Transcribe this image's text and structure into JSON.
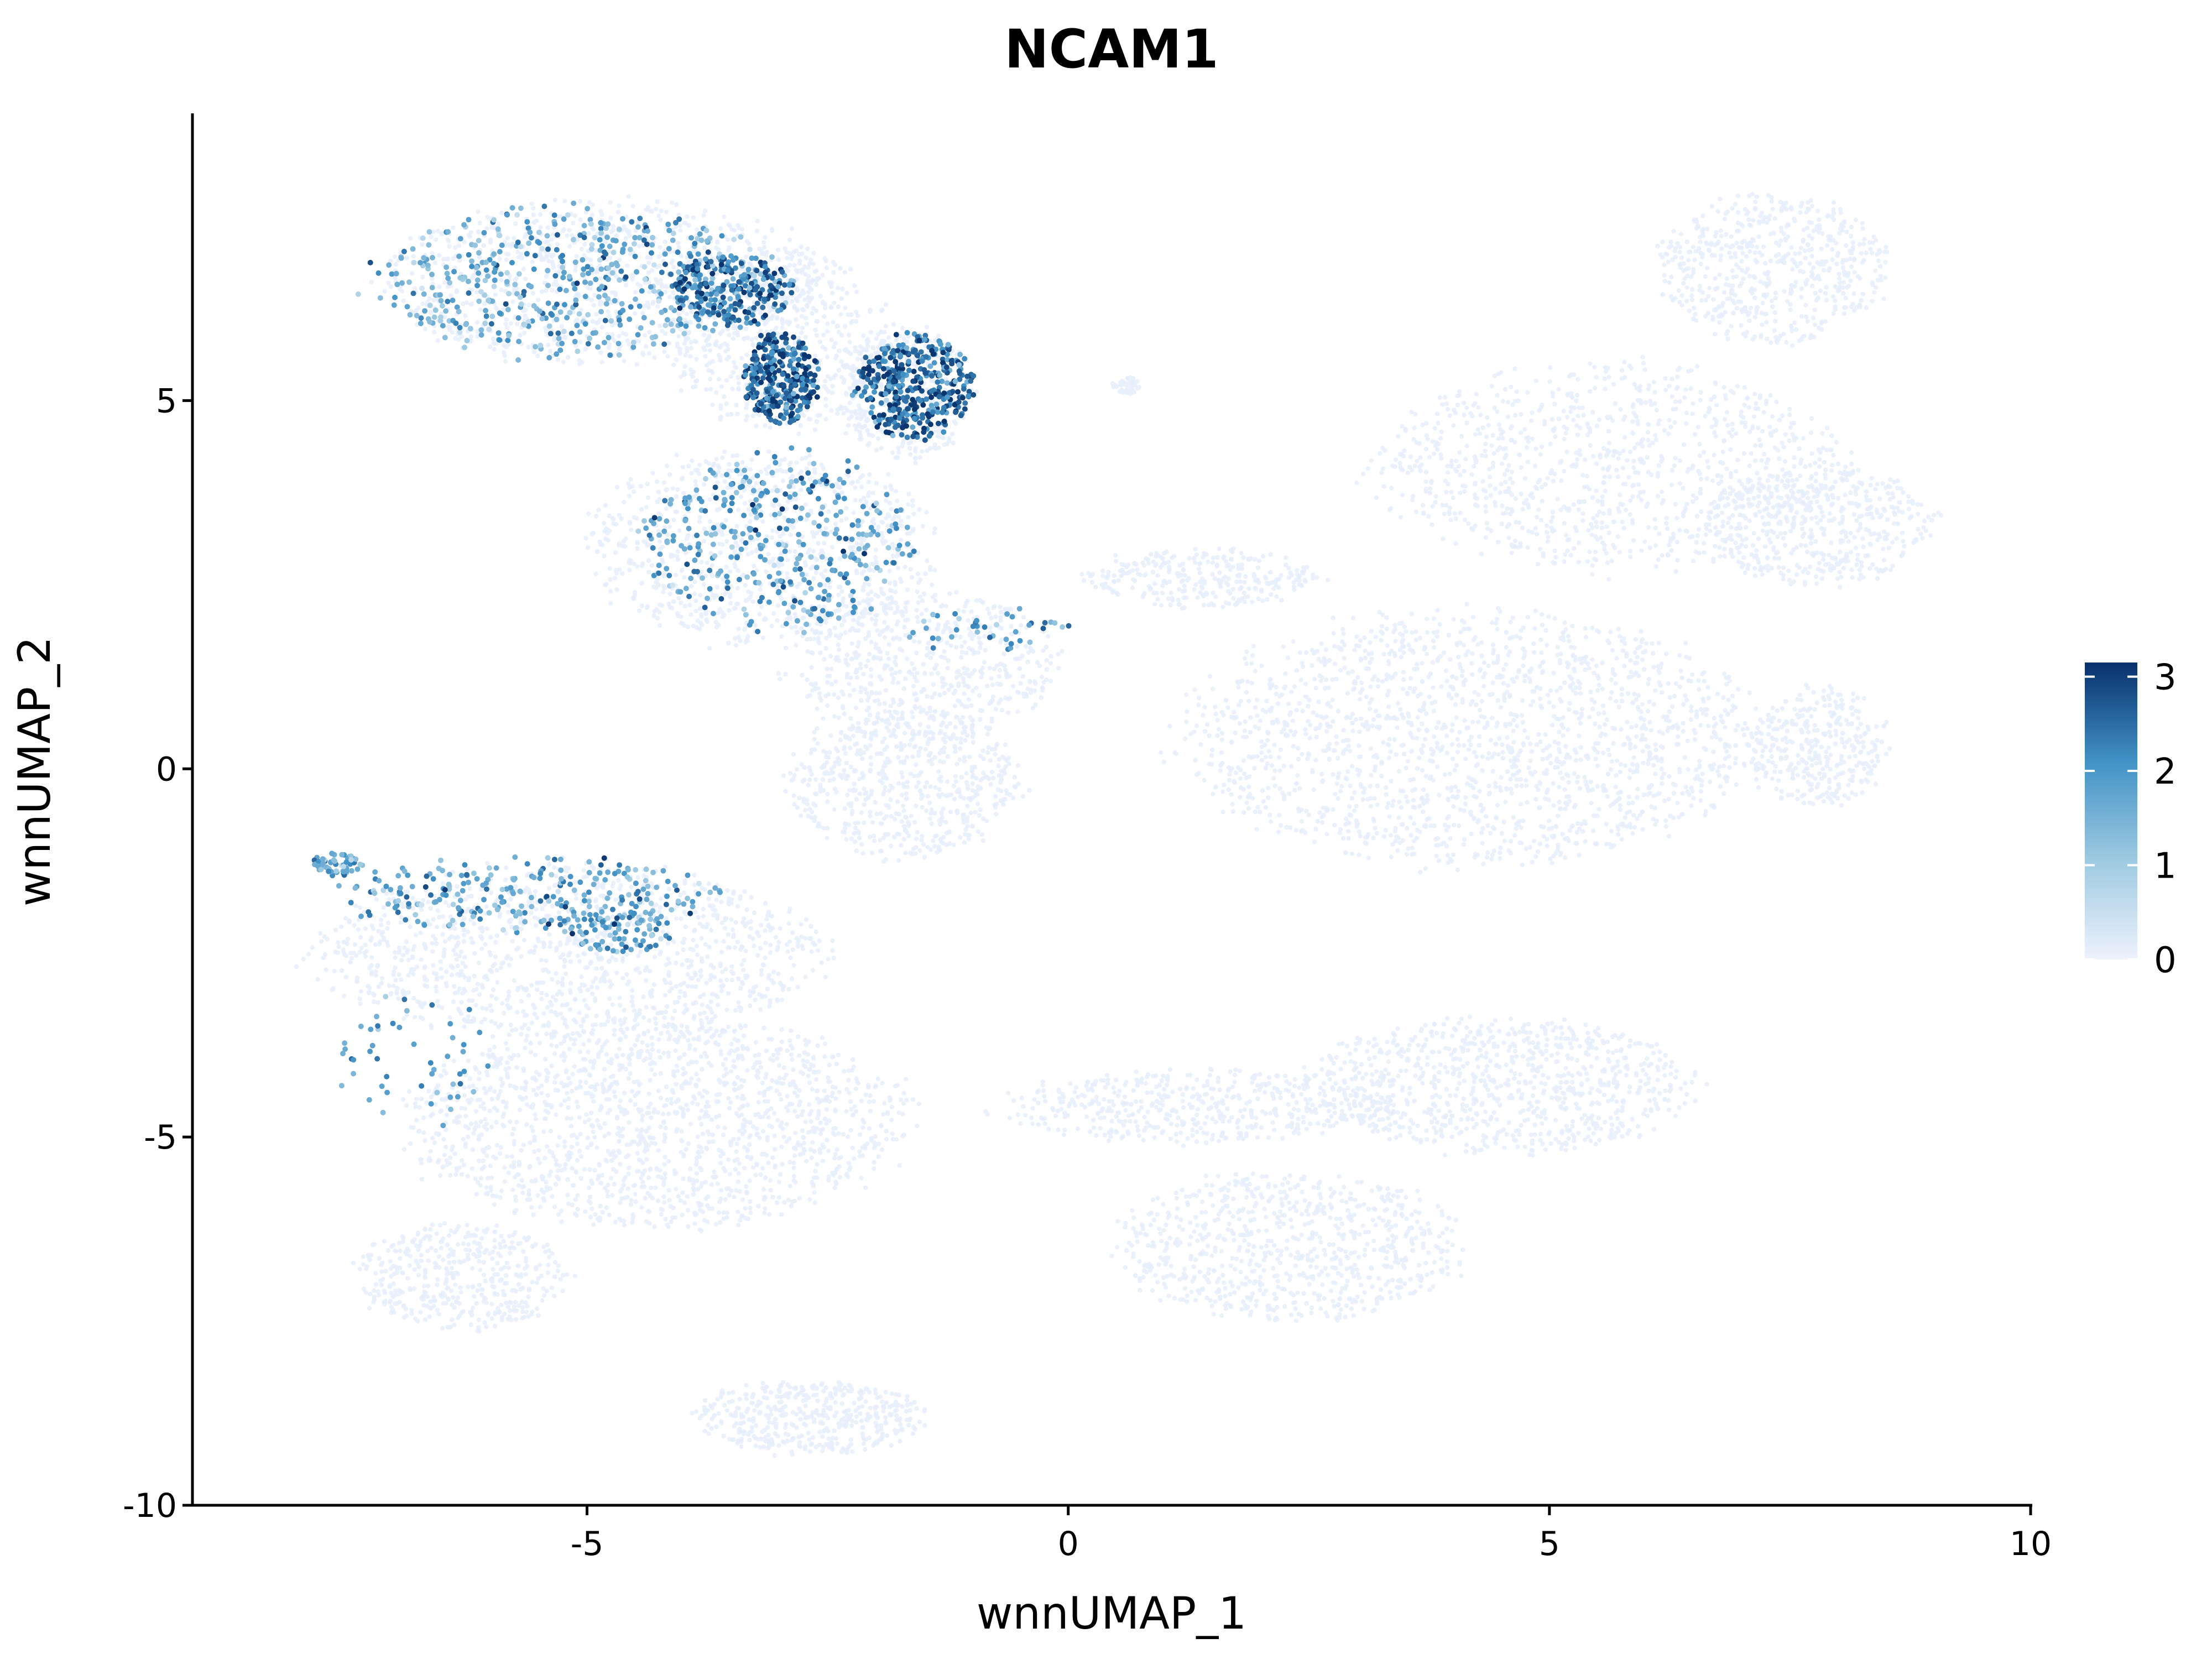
{
  "chart_data": {
    "type": "scatter",
    "title": "NCAM1",
    "xlabel": "wnnUMAP_1",
    "ylabel": "wnnUMAP_2",
    "xlim": [
      -9.5,
      10
    ],
    "ylim": [
      -10,
      9
    ],
    "x_ticks": [
      {
        "value": -5,
        "label": "-5"
      },
      {
        "value": 0,
        "label": "0"
      },
      {
        "value": 5,
        "label": "5"
      },
      {
        "value": 10,
        "label": "10"
      }
    ],
    "y_ticks": [
      {
        "value": 5,
        "label": "5"
      },
      {
        "value": 0,
        "label": "0"
      },
      {
        "value": -5,
        "label": "-5"
      },
      {
        "value": -10,
        "label": "-10"
      }
    ],
    "grid": false,
    "legend": {
      "placement": "right",
      "type": "colorbar",
      "min": 0,
      "max": 3.15,
      "ticks": [
        {
          "value": 0,
          "label": "0"
        },
        {
          "value": 1,
          "label": "1"
        },
        {
          "value": 2,
          "label": "2"
        },
        {
          "value": 3,
          "label": "3"
        }
      ],
      "colors": [
        "#eef2fd",
        "#9ecae1",
        "#4292c6",
        "#08306b"
      ]
    },
    "background_clusters": [
      {
        "cx": -4.8,
        "cy": 6.6,
        "rx": 2.3,
        "ry": 1.1,
        "n": 900
      },
      {
        "cx": -3.0,
        "cy": 5.8,
        "rx": 1.1,
        "ry": 1.2,
        "n": 500
      },
      {
        "cx": -1.7,
        "cy": 5.1,
        "rx": 0.7,
        "ry": 0.9,
        "n": 400
      },
      {
        "cx": -3.2,
        "cy": 3.0,
        "rx": 1.8,
        "ry": 1.3,
        "n": 900
      },
      {
        "cx": -1.5,
        "cy": 1.4,
        "rx": 1.4,
        "ry": 1.0,
        "n": 600
      },
      {
        "cx": -1.7,
        "cy": -0.2,
        "rx": 1.2,
        "ry": 1.0,
        "n": 600
      },
      {
        "cx": -5.2,
        "cy": -2.5,
        "rx": 2.6,
        "ry": 1.2,
        "n": 1200
      },
      {
        "cx": -4.3,
        "cy": -4.8,
        "rx": 2.6,
        "ry": 1.4,
        "n": 1600
      },
      {
        "cx": -6.3,
        "cy": -6.9,
        "rx": 1.1,
        "ry": 0.7,
        "n": 450
      },
      {
        "cx": -2.7,
        "cy": -8.8,
        "rx": 1.2,
        "ry": 0.5,
        "n": 450
      },
      {
        "cx": 4.2,
        "cy": 0.4,
        "rx": 3.0,
        "ry": 1.7,
        "n": 1800
      },
      {
        "cx": 5.6,
        "cy": 4.1,
        "rx": 2.4,
        "ry": 1.4,
        "n": 1000
      },
      {
        "cx": 7.3,
        "cy": 6.8,
        "rx": 1.2,
        "ry": 1.0,
        "n": 600
      },
      {
        "cx": 7.8,
        "cy": 3.3,
        "rx": 1.2,
        "ry": 0.8,
        "n": 500
      },
      {
        "cx": 7.8,
        "cy": 0.3,
        "rx": 0.7,
        "ry": 0.8,
        "n": 350
      },
      {
        "cx": 4.5,
        "cy": -4.3,
        "rx": 2.0,
        "ry": 0.9,
        "n": 900
      },
      {
        "cx": 2.3,
        "cy": -6.5,
        "rx": 1.8,
        "ry": 1.0,
        "n": 800
      },
      {
        "cx": 1.3,
        "cy": -4.6,
        "rx": 2.0,
        "ry": 0.5,
        "n": 500
      },
      {
        "cx": 1.4,
        "cy": 2.6,
        "rx": 1.2,
        "ry": 0.4,
        "n": 300
      },
      {
        "cx": 0.6,
        "cy": 5.2,
        "rx": 0.15,
        "ry": 0.12,
        "n": 40
      }
    ],
    "expression_clusters": [
      {
        "cx": -5.1,
        "cy": 6.6,
        "rx": 2.1,
        "ry": 1.0,
        "n": 520,
        "mean": 1.6
      },
      {
        "cx": -3.5,
        "cy": 6.5,
        "rx": 0.6,
        "ry": 0.5,
        "n": 220,
        "mean": 2.5
      },
      {
        "cx": -3.0,
        "cy": 5.3,
        "rx": 0.4,
        "ry": 0.6,
        "n": 300,
        "mean": 2.6
      },
      {
        "cx": -1.6,
        "cy": 5.2,
        "rx": 0.6,
        "ry": 0.7,
        "n": 380,
        "mean": 2.5
      },
      {
        "cx": -3.0,
        "cy": 3.1,
        "rx": 1.4,
        "ry": 1.2,
        "n": 360,
        "mean": 1.8
      },
      {
        "cx": -0.9,
        "cy": 1.9,
        "rx": 0.9,
        "ry": 0.3,
        "n": 40,
        "mean": 1.8
      },
      {
        "cx": -5.6,
        "cy": -1.7,
        "rx": 2.0,
        "ry": 0.5,
        "n": 260,
        "mean": 1.7
      },
      {
        "cx": -7.6,
        "cy": -1.3,
        "rx": 0.25,
        "ry": 0.15,
        "n": 60,
        "mean": 1.5
      },
      {
        "cx": -4.7,
        "cy": -2.2,
        "rx": 0.6,
        "ry": 0.3,
        "n": 80,
        "mean": 1.8
      },
      {
        "cx": -6.8,
        "cy": -3.9,
        "rx": 0.8,
        "ry": 1.0,
        "n": 50,
        "mean": 1.7
      },
      {
        "cx": 0.0,
        "cy": 0.0,
        "rx": 0.0,
        "ry": 0.0,
        "n": 0,
        "mean": 0
      }
    ]
  }
}
